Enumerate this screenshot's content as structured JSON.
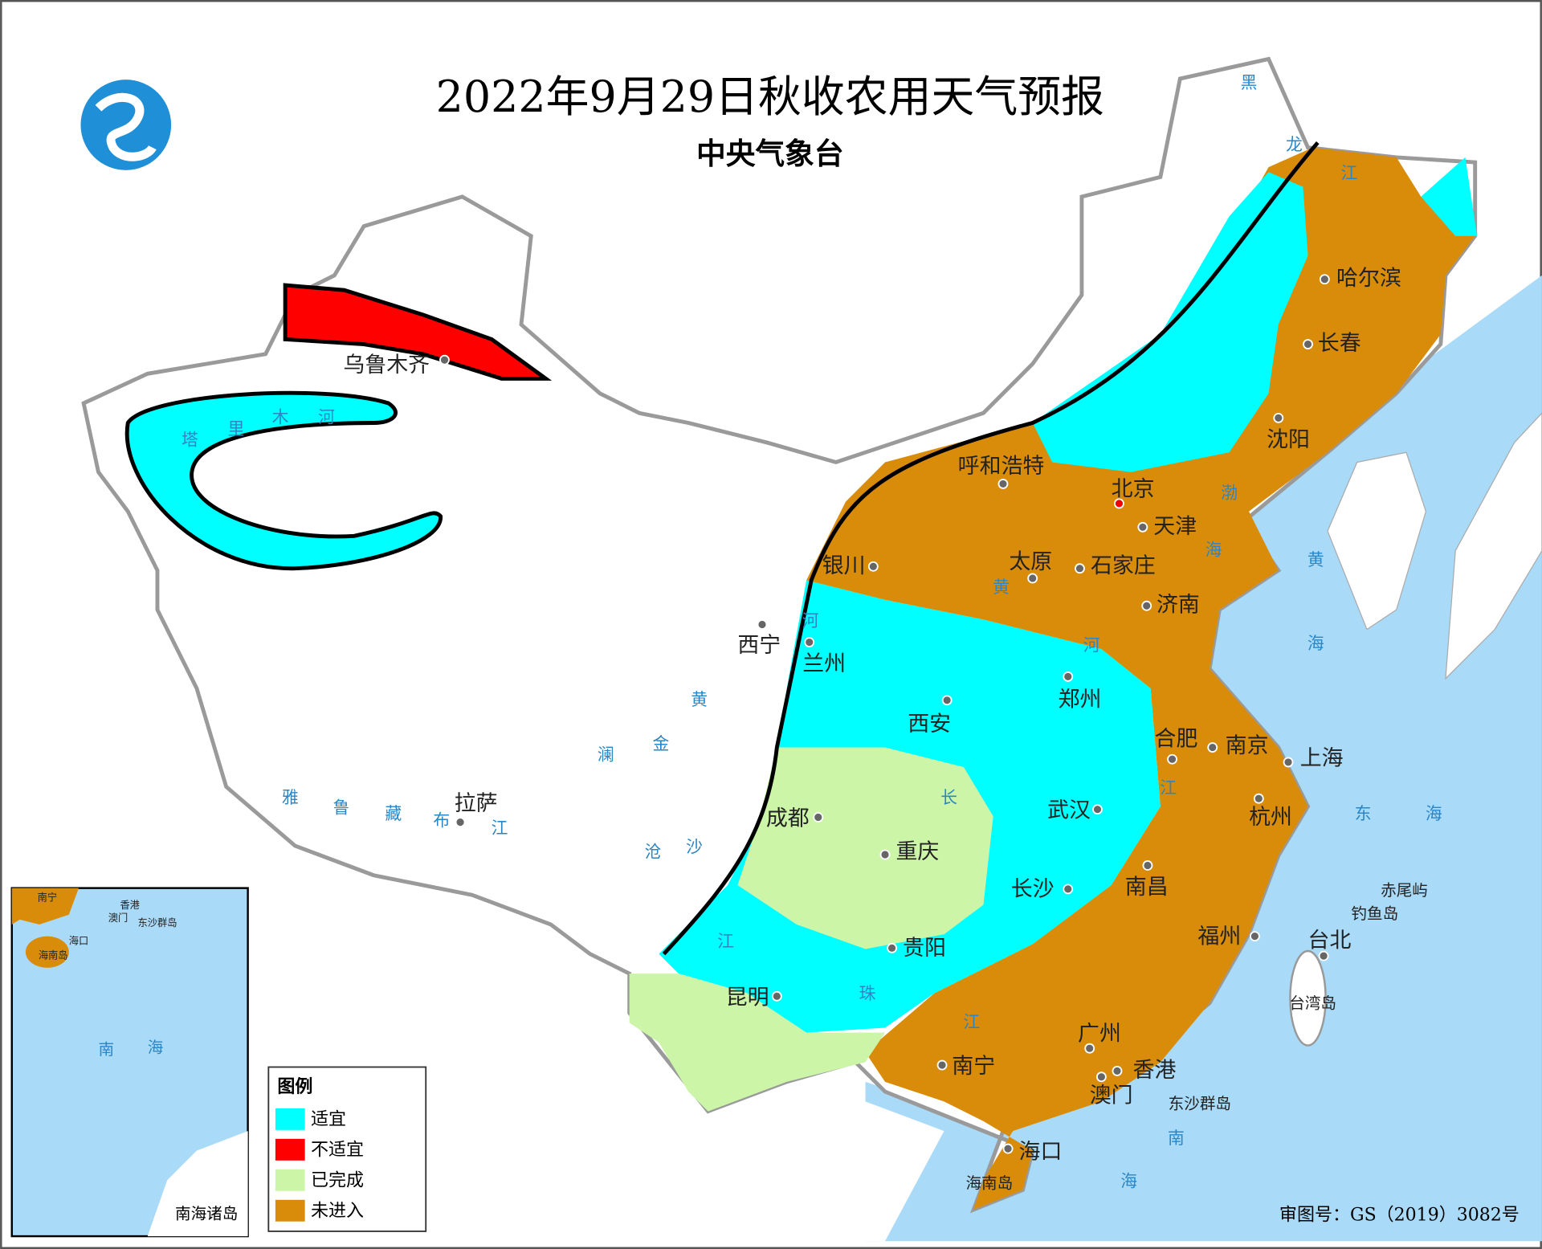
{
  "header": {
    "title": "2022年9月29日秋收农用天气预报",
    "subtitle": "中央气象台"
  },
  "legend": {
    "title": "图例",
    "items": [
      {
        "label": "适宜",
        "color": "#00ffff"
      },
      {
        "label": "不适宜",
        "color": "#ff0000"
      },
      {
        "label": "已完成",
        "color": "#ccf5a8"
      },
      {
        "label": "未进入",
        "color": "#d98b0a"
      }
    ]
  },
  "cities": [
    "乌鲁木齐",
    "哈尔滨",
    "长春",
    "沈阳",
    "呼和浩特",
    "北京",
    "天津",
    "银川",
    "太原",
    "石家庄",
    "济南",
    "西宁",
    "兰州",
    "西安",
    "郑州",
    "合肥",
    "南京",
    "上海",
    "拉萨",
    "成都",
    "重庆",
    "武汉",
    "杭州",
    "长沙",
    "南昌",
    "贵阳",
    "昆明",
    "福州",
    "台北",
    "南宁",
    "广州",
    "香港",
    "澳门",
    "海口"
  ],
  "places": [
    "赤尾屿",
    "钓鱼岛",
    "台湾岛",
    "东沙群岛",
    "海南岛"
  ],
  "water_labels": [
    "黑",
    "龙",
    "江",
    "塔",
    "里",
    "木",
    "河",
    "雅",
    "鲁",
    "藏",
    "布",
    "江",
    "黄",
    "河",
    "黄",
    "河",
    "长",
    "江",
    "澜",
    "沧",
    "金",
    "沙",
    "江",
    "珠",
    "江",
    "渤",
    "海",
    "黄",
    "海",
    "东",
    "海",
    "南",
    "海"
  ],
  "inset": {
    "labels": [
      "南宁",
      "香港",
      "澳门",
      "海口",
      "东沙群岛",
      "海南岛",
      "南",
      "海"
    ],
    "caption": "南海诸岛"
  },
  "footer": {
    "approval": "审图号：GS（2019）3082号"
  }
}
